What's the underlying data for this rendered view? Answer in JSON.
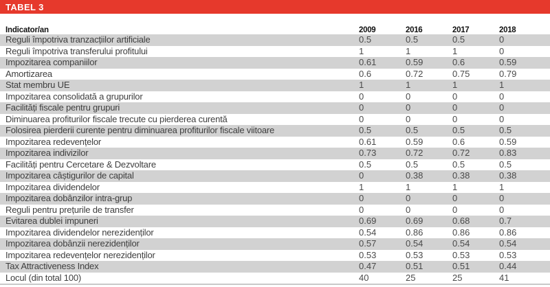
{
  "table": {
    "title": "TABEL 3",
    "header": {
      "indicator_label": "Indicator/an",
      "years": [
        "2009",
        "2016",
        "2017",
        "2018"
      ]
    },
    "rows": [
      {
        "label": "Reguli împotriva tranzacțiilor artificiale",
        "values": [
          "0.5",
          "0.5",
          "0.5",
          "0"
        ]
      },
      {
        "label": "Reguli împotriva transferului profitului",
        "values": [
          "1",
          "1",
          "1",
          "0"
        ]
      },
      {
        "label": "Impozitarea companiilor",
        "values": [
          "0.61",
          "0.59",
          "0.6",
          "0.59"
        ]
      },
      {
        "label": "Amortizarea",
        "values": [
          "0.6",
          "0.72",
          "0.75",
          "0.79"
        ]
      },
      {
        "label": "Stat membru UE",
        "values": [
          "1",
          "1",
          "1",
          "1"
        ]
      },
      {
        "label": "Impozitarea consolidată a grupurilor",
        "values": [
          "0",
          "0",
          "0",
          "0"
        ]
      },
      {
        "label": "Facilități fiscale pentru grupuri",
        "values": [
          "0",
          "0",
          "0",
          "0"
        ]
      },
      {
        "label": "Diminuarea profiturilor fiscale trecute cu pierderea curentă",
        "values": [
          "0",
          "0",
          "0",
          "0"
        ]
      },
      {
        "label": "Folosirea pierderii curente pentru diminuarea profiturilor fiscale viitoare",
        "values": [
          "0.5",
          "0.5",
          "0.5",
          "0.5"
        ]
      },
      {
        "label": "Impozitarea redevențelor",
        "values": [
          "0.61",
          "0.59",
          "0.6",
          "0.59"
        ]
      },
      {
        "label": "Impozitarea indivizilor",
        "values": [
          "0.73",
          "0.72",
          "0.72",
          "0.83"
        ]
      },
      {
        "label": "Facilități pentru Cercetare & Dezvoltare",
        "values": [
          "0.5",
          "0.5",
          "0.5",
          "0.5"
        ]
      },
      {
        "label": "Impozitarea câștigurilor de capital",
        "values": [
          "0",
          "0.38",
          "0.38",
          "0.38"
        ]
      },
      {
        "label": "Impozitarea dividendelor",
        "values": [
          "1",
          "1",
          "1",
          "1"
        ]
      },
      {
        "label": "Impozitarea dobânzilor intra-grup",
        "values": [
          "0",
          "0",
          "0",
          "0"
        ]
      },
      {
        "label": "Reguli pentru prețurile de transfer",
        "values": [
          "0",
          "0",
          "0",
          "0"
        ]
      },
      {
        "label": "Evitarea dublei impuneri",
        "values": [
          "0.69",
          "0.69",
          "0.68",
          "0.7"
        ]
      },
      {
        "label": "Impozitarea dividendelor nerezidenților",
        "values": [
          "0.54",
          "0.86",
          "0.86",
          "0.86"
        ]
      },
      {
        "label": "Impozitarea dobânzii nerezidenților",
        "values": [
          "0.57",
          "0.54",
          "0.54",
          "0.54"
        ]
      },
      {
        "label": "Impozitarea redevențelor nerezidenților",
        "values": [
          "0.53",
          "0.53",
          "0.53",
          "0.53"
        ]
      },
      {
        "label": "Tax Attractiveness Index",
        "values": [
          "0.47",
          "0.51",
          "0.51",
          "0.44"
        ]
      },
      {
        "label": "Locul (din total 100)",
        "values": [
          "40",
          "25",
          "25",
          "41"
        ]
      }
    ]
  },
  "colors": {
    "accent_red": "#e6392c",
    "stripe_gray": "#d2d2d2",
    "bottom_border_gray": "#c8c8c8"
  }
}
